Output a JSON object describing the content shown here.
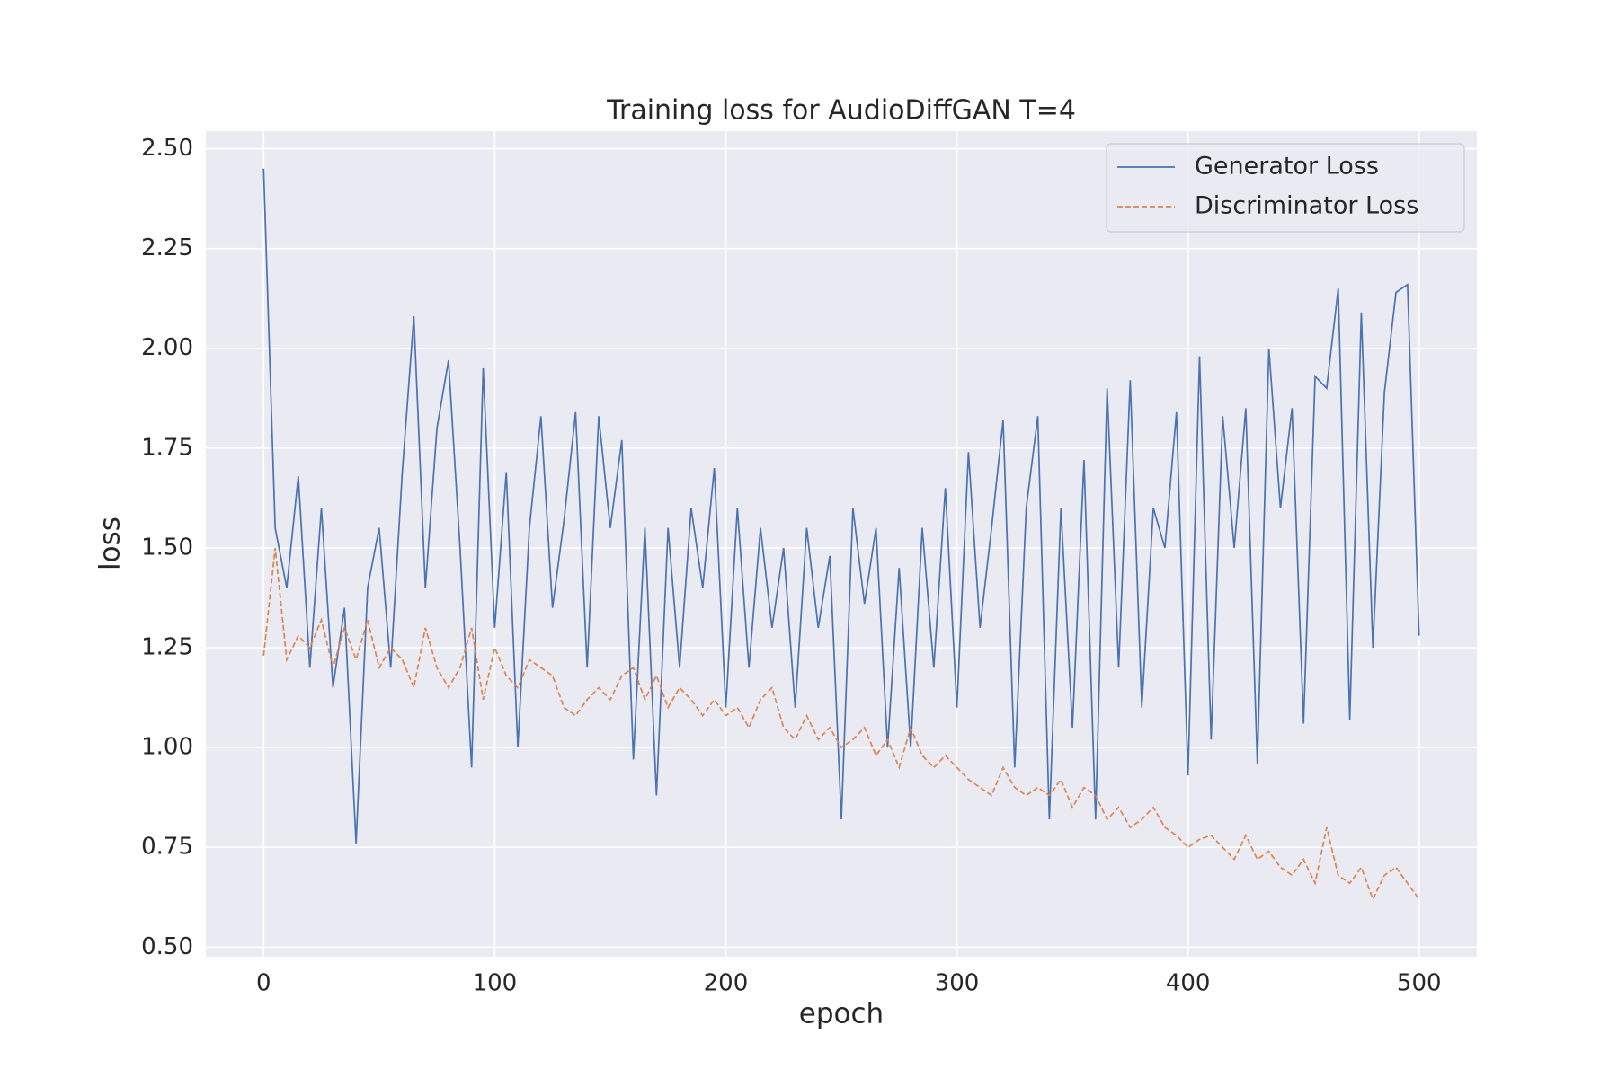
{
  "chart_data": {
    "type": "line",
    "title": "Training loss for AudioDiffGAN T=4",
    "xlabel": "epoch",
    "ylabel": "loss",
    "x": [
      0,
      5,
      10,
      15,
      20,
      25,
      30,
      35,
      40,
      45,
      50,
      55,
      60,
      65,
      70,
      75,
      80,
      85,
      90,
      95,
      100,
      105,
      110,
      115,
      120,
      125,
      130,
      135,
      140,
      145,
      150,
      155,
      160,
      165,
      170,
      175,
      180,
      185,
      190,
      195,
      200,
      205,
      210,
      215,
      220,
      225,
      230,
      235,
      240,
      245,
      250,
      255,
      260,
      265,
      270,
      275,
      280,
      285,
      290,
      295,
      300,
      305,
      310,
      315,
      320,
      325,
      330,
      335,
      340,
      345,
      350,
      355,
      360,
      365,
      370,
      375,
      380,
      385,
      390,
      395,
      400,
      405,
      410,
      415,
      420,
      425,
      430,
      435,
      440,
      445,
      450,
      455,
      460,
      465,
      470,
      475,
      480,
      485,
      490,
      495,
      500
    ],
    "series": [
      {
        "name": "Generator Loss",
        "color": "#4c72b0",
        "style": "solid",
        "values": [
          2.45,
          1.55,
          1.4,
          1.68,
          1.2,
          1.6,
          1.15,
          1.35,
          0.76,
          1.4,
          1.55,
          1.2,
          1.69,
          2.08,
          1.4,
          1.8,
          1.97,
          1.5,
          0.95,
          1.95,
          1.3,
          1.69,
          1.0,
          1.55,
          1.83,
          1.35,
          1.57,
          1.84,
          1.2,
          1.83,
          1.55,
          1.77,
          0.97,
          1.55,
          0.88,
          1.55,
          1.2,
          1.6,
          1.4,
          1.7,
          1.1,
          1.6,
          1.2,
          1.55,
          1.3,
          1.5,
          1.1,
          1.55,
          1.3,
          1.48,
          0.82,
          1.6,
          1.36,
          1.55,
          1.0,
          1.45,
          1.0,
          1.55,
          1.2,
          1.65,
          1.1,
          1.74,
          1.3,
          1.55,
          1.82,
          0.95,
          1.6,
          1.83,
          0.82,
          1.6,
          1.05,
          1.72,
          0.82,
          1.9,
          1.2,
          1.92,
          1.1,
          1.6,
          1.5,
          1.84,
          0.93,
          1.98,
          1.02,
          1.83,
          1.5,
          1.85,
          0.96,
          2.0,
          1.6,
          1.85,
          1.06,
          1.93,
          1.9,
          2.15,
          1.07,
          2.09,
          1.25,
          1.89,
          2.14,
          2.16,
          1.28
        ]
      },
      {
        "name": "Discriminator Loss",
        "color": "#dd8452",
        "style": "dashed",
        "values": [
          1.23,
          1.5,
          1.22,
          1.28,
          1.25,
          1.32,
          1.2,
          1.3,
          1.22,
          1.32,
          1.2,
          1.25,
          1.22,
          1.15,
          1.3,
          1.2,
          1.15,
          1.2,
          1.3,
          1.12,
          1.25,
          1.18,
          1.15,
          1.22,
          1.2,
          1.18,
          1.1,
          1.08,
          1.12,
          1.15,
          1.12,
          1.18,
          1.2,
          1.12,
          1.18,
          1.1,
          1.15,
          1.12,
          1.08,
          1.12,
          1.08,
          1.1,
          1.05,
          1.12,
          1.15,
          1.05,
          1.02,
          1.08,
          1.02,
          1.05,
          1.0,
          1.02,
          1.05,
          0.98,
          1.02,
          0.95,
          1.05,
          0.98,
          0.95,
          0.98,
          0.95,
          0.92,
          0.9,
          0.88,
          0.95,
          0.9,
          0.88,
          0.9,
          0.88,
          0.92,
          0.85,
          0.9,
          0.88,
          0.82,
          0.85,
          0.8,
          0.82,
          0.85,
          0.8,
          0.78,
          0.75,
          0.77,
          0.78,
          0.75,
          0.72,
          0.78,
          0.72,
          0.74,
          0.7,
          0.68,
          0.72,
          0.66,
          0.8,
          0.68,
          0.66,
          0.7,
          0.62,
          0.68,
          0.7,
          0.66,
          0.62
        ]
      }
    ],
    "xlim": [
      -25,
      525
    ],
    "ylim": [
      0.476,
      2.544
    ],
    "xticks": [
      0,
      100,
      200,
      300,
      400,
      500
    ],
    "yticks": [
      {
        "value": 0.5,
        "label": "0.50"
      },
      0.75,
      {
        "value": 1,
        "label": "1.00"
      },
      1.25,
      {
        "value": 1.5,
        "label": "1.50"
      },
      1.75,
      {
        "value": 2,
        "label": "2.00"
      },
      2.25,
      {
        "value": 2.5,
        "label": "2.50"
      }
    ],
    "grid": true,
    "legend": "upper right"
  }
}
